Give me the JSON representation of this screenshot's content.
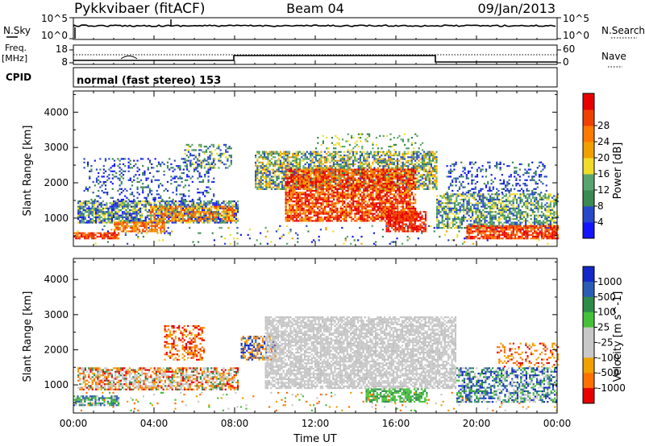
{
  "header": {
    "station": "Pykkvibaer (fitACF)",
    "beam": "Beam 04",
    "date": "09/Jan/2013"
  },
  "nsky_panel": {
    "left_label": "N.Sky",
    "left_ticks": [
      "10^5",
      "10^0"
    ],
    "right_label": "N.Search",
    "right_ticks": [
      "10^5",
      "10^0"
    ]
  },
  "freq_panel": {
    "left_label_line1": "Freq.",
    "left_label_line2": "[MHz]",
    "left_ticks": [
      "18",
      "8"
    ],
    "right_label": "Nave",
    "right_ticks": [
      "60",
      "0"
    ]
  },
  "cpid": {
    "label": "CPID",
    "mode_text": "normal (fast stereo) 153"
  },
  "colors": {
    "power": [
      "#1414ff",
      "#2848c8",
      "#3a8a52",
      "#5aa56e",
      "#f0dc28",
      "#f0a000",
      "#ff7800",
      "#f04000",
      "#e60000"
    ],
    "velocity": [
      "#1428c8",
      "#2a5cb4",
      "#2e8a48",
      "#46c03a",
      "#c8c8c8",
      "#c8c8c8",
      "#f0a000",
      "#ff7000",
      "#e60000"
    ]
  },
  "chart_data": [
    {
      "type": "heatmap",
      "title": "",
      "xlabel": "",
      "ylabel": "Slant Range [km]",
      "xlim": [
        "00:00",
        "24:00"
      ],
      "ylim": [
        200,
        4600
      ],
      "yticks": [
        "1000",
        "2000",
        "3000",
        "4000"
      ],
      "colorbar": {
        "label": "Power [dB]",
        "ticks": [
          "4",
          "8",
          "12",
          "16",
          "20",
          "24",
          "28"
        ],
        "range": [
          0,
          30
        ]
      },
      "features": [
        {
          "x": [
            1,
            8
          ],
          "y": [
            600,
            1400
          ],
          "level": "12-28 dB"
        },
        {
          "x": [
            9.5,
            18
          ],
          "y": [
            800,
            2900
          ],
          "level": "20-30 dB"
        },
        {
          "x": [
            18,
            24
          ],
          "y": [
            500,
            1500
          ],
          "level": "16-28 dB"
        }
      ]
    },
    {
      "type": "heatmap",
      "title": "",
      "xlabel": "Time UT",
      "ylabel": "Slant Range [km]",
      "xlim": [
        "00:00",
        "24:00"
      ],
      "ylim": [
        200,
        4600
      ],
      "yticks": [
        "1000",
        "2000",
        "3000",
        "4000"
      ],
      "xticks": [
        "00:00",
        "04:00",
        "08:00",
        "12:00",
        "16:00",
        "20:00",
        "00:00"
      ],
      "colorbar": {
        "label": "Velocity [m s^-1]",
        "ticks": [
          "1000",
          "500",
          "100",
          "25",
          "-25",
          "-100",
          "-500",
          "-1000"
        ]
      },
      "features": [
        {
          "x": [
            0,
            8
          ],
          "y": [
            500,
            2000
          ],
          "level": "mixed -25 to -1000"
        },
        {
          "x": [
            9,
            19
          ],
          "y": [
            800,
            2900
          ],
          "level": "-25 to 25 (ground scatter)"
        },
        {
          "x": [
            19,
            24
          ],
          "y": [
            500,
            1500
          ],
          "level": "100 to 1000"
        }
      ]
    }
  ]
}
